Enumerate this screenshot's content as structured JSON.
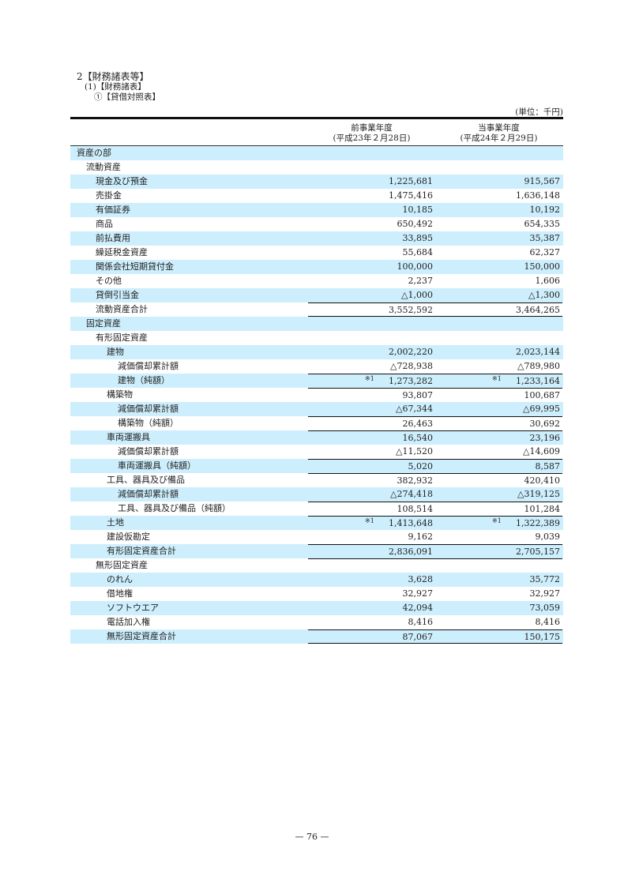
{
  "heading": {
    "h1": "2【財務諸表等】",
    "h2": "(1)【財務諸表】",
    "h3": "①【貸借対照表】",
    "unit": "(単位：千円)"
  },
  "columns": [
    {
      "label": "前事業年度",
      "date": "(平成23年２月28日)"
    },
    {
      "label": "当事業年度",
      "date": "(平成24年２月29日)"
    }
  ],
  "rows": [
    {
      "label": "資産の部",
      "level": 0,
      "prev": "",
      "curr": ""
    },
    {
      "label": "流動資産",
      "level": 1,
      "prev": "",
      "curr": ""
    },
    {
      "label": "現金及び預金",
      "level": 2,
      "prev": "1,225,681",
      "curr": "915,567"
    },
    {
      "label": "売掛金",
      "level": 2,
      "prev": "1,475,416",
      "curr": "1,636,148"
    },
    {
      "label": "有価証券",
      "level": 2,
      "prev": "10,185",
      "curr": "10,192"
    },
    {
      "label": "商品",
      "level": 2,
      "prev": "650,492",
      "curr": "654,335"
    },
    {
      "label": "前払費用",
      "level": 2,
      "prev": "33,895",
      "curr": "35,387"
    },
    {
      "label": "繰延税金資産",
      "level": 2,
      "prev": "55,684",
      "curr": "62,327"
    },
    {
      "label": "関係会社短期貸付金",
      "level": 2,
      "prev": "100,000",
      "curr": "150,000"
    },
    {
      "label": "その他",
      "level": 2,
      "prev": "2,237",
      "curr": "1,606"
    },
    {
      "label": "貸倒引当金",
      "level": 2,
      "prev": "△1,000",
      "curr": "△1,300"
    },
    {
      "label": "流動資産合計",
      "level": 2,
      "prev": "3,552,592",
      "curr": "3,464,265",
      "bt": true,
      "bb": true
    },
    {
      "label": "固定資産",
      "level": 1,
      "prev": "",
      "curr": ""
    },
    {
      "label": "有形固定資産",
      "level": 2,
      "prev": "",
      "curr": ""
    },
    {
      "label": "建物",
      "level": 3,
      "prev": "2,002,220",
      "curr": "2,023,144"
    },
    {
      "label": "減価償却累計額",
      "level": 4,
      "prev": "△728,938",
      "curr": "△789,980"
    },
    {
      "label": "建物（純額）",
      "level": 4,
      "prev": "1,273,282",
      "curr": "1,233,164",
      "bt": true,
      "note": "※1"
    },
    {
      "label": "構築物",
      "level": 3,
      "prev": "93,807",
      "curr": "100,687",
      "bt": true
    },
    {
      "label": "減価償却累計額",
      "level": 4,
      "prev": "△67,344",
      "curr": "△69,995"
    },
    {
      "label": "構築物（純額）",
      "level": 4,
      "prev": "26,463",
      "curr": "30,692",
      "bt": true
    },
    {
      "label": "車両運搬具",
      "level": 3,
      "prev": "16,540",
      "curr": "23,196",
      "bt": true
    },
    {
      "label": "減価償却累計額",
      "level": 4,
      "prev": "△11,520",
      "curr": "△14,609"
    },
    {
      "label": "車両運搬具（純額）",
      "level": 4,
      "prev": "5,020",
      "curr": "8,587",
      "bt": true
    },
    {
      "label": "工具、器具及び備品",
      "level": 3,
      "prev": "382,932",
      "curr": "420,410",
      "bt": true
    },
    {
      "label": "減価償却累計額",
      "level": 4,
      "prev": "△274,418",
      "curr": "△319,125"
    },
    {
      "label": "工具、器具及び備品（純額）",
      "level": 4,
      "prev": "108,514",
      "curr": "101,284",
      "bt": true
    },
    {
      "label": "土地",
      "level": 3,
      "prev": "1,413,648",
      "curr": "1,322,389",
      "bt": true,
      "note": "※1"
    },
    {
      "label": "建設仮勘定",
      "level": 3,
      "prev": "9,162",
      "curr": "9,039"
    },
    {
      "label": "有形固定資産合計",
      "level": 3,
      "prev": "2,836,091",
      "curr": "2,705,157",
      "bt": true
    },
    {
      "label": "無形固定資産",
      "level": 2,
      "prev": "",
      "curr": "",
      "bt": true
    },
    {
      "label": "のれん",
      "level": 3,
      "prev": "3,628",
      "curr": "35,772"
    },
    {
      "label": "借地権",
      "level": 3,
      "prev": "32,927",
      "curr": "32,927"
    },
    {
      "label": "ソフトウエア",
      "level": 3,
      "prev": "42,094",
      "curr": "73,059"
    },
    {
      "label": "電話加入権",
      "level": 3,
      "prev": "8,416",
      "curr": "8,416"
    },
    {
      "label": "無形固定資産合計",
      "level": 3,
      "prev": "87,067",
      "curr": "150,175",
      "bt": true,
      "bb": true
    }
  ],
  "page_number": "— 76 —",
  "colors": {
    "shade": "#cdeefc"
  }
}
